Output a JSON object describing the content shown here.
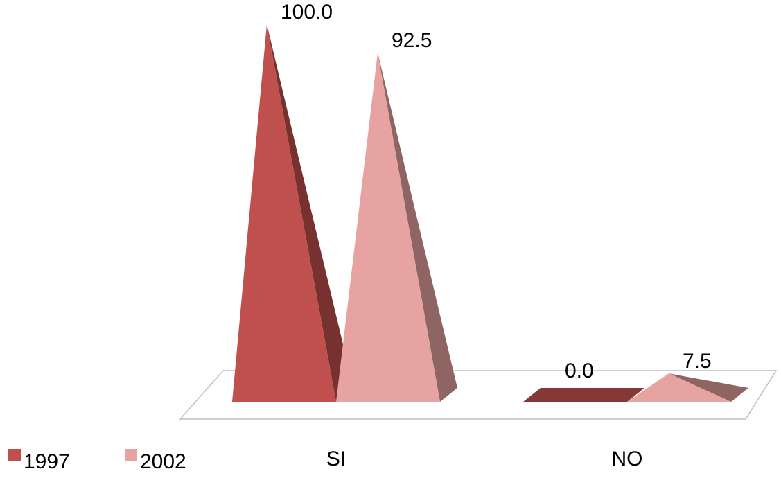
{
  "chart_data": {
    "type": "bar",
    "style": "3d-pyramid",
    "categories": [
      "SI",
      "NO"
    ],
    "series": [
      {
        "name": "1997",
        "values": [
          100.0,
          0.0
        ],
        "color": "#c0504d",
        "label_values": [
          "100.0",
          "0.0"
        ]
      },
      {
        "name": "2002",
        "values": [
          92.5,
          7.5
        ],
        "color": "#e6a3a2",
        "label_values": [
          "92.5",
          "7.5"
        ]
      }
    ],
    "ylim": [
      0,
      100
    ],
    "grid": false,
    "legend_position": "bottom-left"
  }
}
